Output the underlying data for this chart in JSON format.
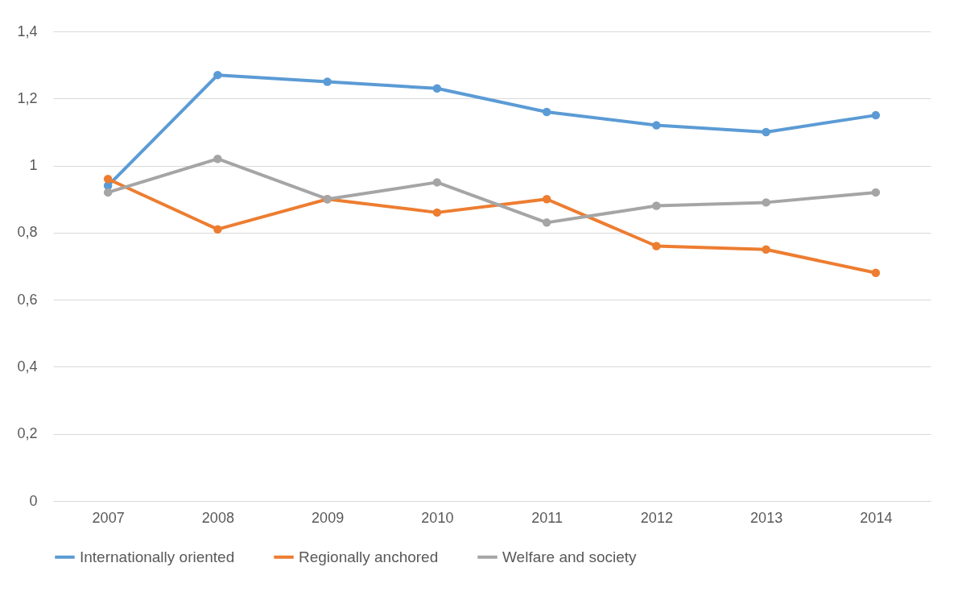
{
  "chart_data": {
    "type": "line",
    "categories": [
      "2007",
      "2008",
      "2009",
      "2010",
      "2011",
      "2012",
      "2013",
      "2014"
    ],
    "series": [
      {
        "name": "Internationally oriented",
        "color": "#5b9bd5",
        "values": [
          0.94,
          1.27,
          1.25,
          1.23,
          1.16,
          1.12,
          1.1,
          1.15
        ]
      },
      {
        "name": "Regionally anchored",
        "color": "#ed7d31",
        "values": [
          0.96,
          0.81,
          0.9,
          0.86,
          0.9,
          0.76,
          0.75,
          0.68
        ]
      },
      {
        "name": "Welfare and society",
        "color": "#a5a5a5",
        "values": [
          0.92,
          1.02,
          0.9,
          0.95,
          0.83,
          0.88,
          0.89,
          0.92
        ]
      }
    ],
    "ylim": [
      0,
      1.4
    ],
    "yticks": [
      0,
      {
        "value": 0.2,
        "label": "0,2"
      },
      {
        "value": 0.4,
        "label": "0,4"
      },
      {
        "value": 0.6,
        "label": "0,6"
      },
      {
        "value": 0.8,
        "label": "0,8"
      },
      1,
      {
        "value": 1.2,
        "label": "1,2"
      },
      {
        "value": 1.4,
        "label": "1,4"
      }
    ],
    "grid": "y",
    "legend": "bottom",
    "marker": "circle",
    "line_style": "solid"
  }
}
